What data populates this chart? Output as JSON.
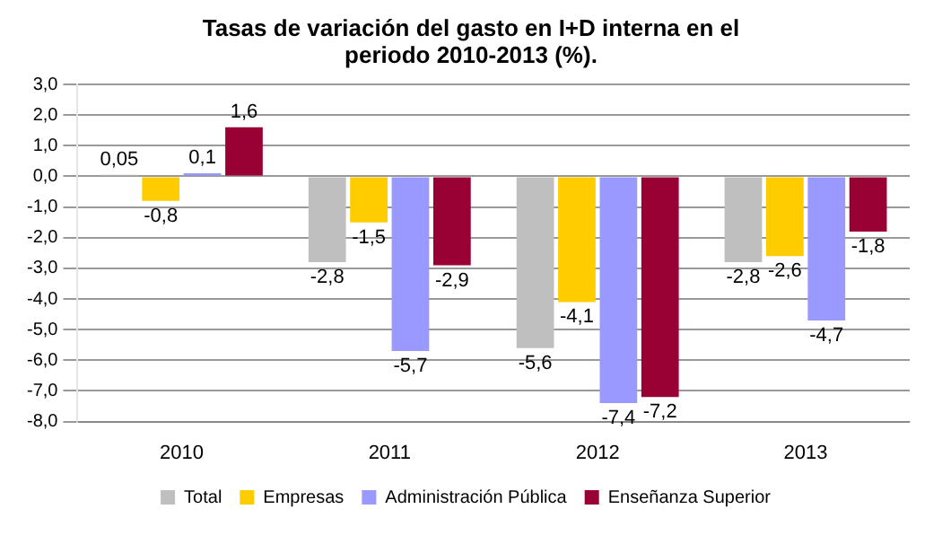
{
  "chart_data": {
    "type": "bar",
    "title": "Tasas de variación del gasto en I+D interna en el periodo 2010-2013 (%).",
    "categories": [
      "2010",
      "2011",
      "2012",
      "2013"
    ],
    "series": [
      {
        "name": "Total",
        "color": "#bfbfbf",
        "values": [
          0.05,
          -2.8,
          -5.6,
          -2.8
        ],
        "value_labels": [
          "0,05",
          "-2,8",
          "-5,6",
          "-2,8"
        ]
      },
      {
        "name": "Empresas",
        "color": "#ffcc00",
        "values": [
          -0.8,
          -1.5,
          -4.1,
          -2.6
        ],
        "value_labels": [
          "-0,8",
          "-1,5",
          "-4,1",
          "-2,6"
        ]
      },
      {
        "name": "Administración Pública",
        "color": "#9999ff",
        "values": [
          0.1,
          -5.7,
          -7.4,
          -4.7
        ],
        "value_labels": [
          "0,1",
          "-5,7",
          "-7,4",
          "-4,7"
        ]
      },
      {
        "name": "Enseñanza Superior",
        "color": "#990033",
        "values": [
          1.6,
          -2.9,
          -7.2,
          -1.8
        ],
        "value_labels": [
          "1,6",
          "-2,9",
          "-7,2",
          "-1,8"
        ]
      }
    ],
    "ylim": [
      -8,
      3
    ],
    "yticks": [
      {
        "value": 3,
        "label": "3,0"
      },
      {
        "value": 2,
        "label": "2,0"
      },
      {
        "value": 1,
        "label": "1,0"
      },
      {
        "value": 0,
        "label": "0,0"
      },
      {
        "value": -1,
        "label": "-1,0"
      },
      {
        "value": -2,
        "label": "-2,0"
      },
      {
        "value": -3,
        "label": "-3,0"
      },
      {
        "value": -4,
        "label": "-4,0"
      },
      {
        "value": -5,
        "label": "-5,0"
      },
      {
        "value": -6,
        "label": "-6,0"
      },
      {
        "value": -7,
        "label": "-7,0"
      },
      {
        "value": -8,
        "label": "-8,0"
      }
    ],
    "grid": "y",
    "legend": "bottom"
  }
}
